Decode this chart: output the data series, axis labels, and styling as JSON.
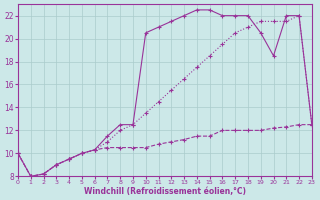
{
  "background_color": "#cce8e8",
  "grid_color": "#aacccc",
  "line_color": "#993399",
  "xlabel": "Windchill (Refroidissement éolien,°C)",
  "xlim": [
    0,
    23
  ],
  "ylim": [
    8,
    23
  ],
  "yticks": [
    8,
    10,
    12,
    14,
    16,
    18,
    20,
    22
  ],
  "xticks": [
    0,
    1,
    2,
    3,
    4,
    5,
    6,
    7,
    8,
    9,
    10,
    11,
    12,
    13,
    14,
    15,
    16,
    17,
    18,
    19,
    20,
    21,
    22,
    23
  ],
  "curve_dotted_x": [
    0,
    1,
    2,
    3,
    4,
    5,
    6,
    7,
    8,
    9,
    10,
    11,
    12,
    13,
    14,
    15,
    16,
    17,
    18,
    19,
    20,
    21,
    22,
    23
  ],
  "curve_dotted_y": [
    10,
    8,
    8.2,
    9.0,
    9.5,
    10.0,
    10.3,
    11.0,
    12.0,
    12.5,
    13.5,
    14.5,
    15.5,
    16.5,
    17.5,
    18.5,
    19.5,
    20.5,
    21.0,
    21.5,
    21.5,
    21.5,
    22.0,
    12.5
  ],
  "curve_solid_x": [
    0,
    1,
    2,
    3,
    4,
    5,
    6,
    7,
    8,
    9,
    10,
    11,
    12,
    13,
    14,
    15,
    16,
    17,
    18,
    19,
    20,
    21,
    22,
    23
  ],
  "curve_solid_y": [
    10,
    8,
    8.2,
    9.0,
    9.5,
    10.0,
    10.3,
    11.5,
    12.5,
    12.5,
    20.5,
    21.0,
    21.5,
    22.0,
    22.5,
    22.5,
    22.0,
    22.0,
    22.0,
    20.5,
    18.5,
    22.0,
    22.0,
    12.5
  ],
  "curve_dashed_x": [
    0,
    1,
    2,
    3,
    4,
    5,
    6,
    7,
    8,
    9,
    10,
    11,
    12,
    13,
    14,
    15,
    16,
    17,
    18,
    19,
    20,
    21,
    22,
    23
  ],
  "curve_dashed_y": [
    10,
    8,
    8.2,
    9.0,
    9.5,
    10.0,
    10.3,
    10.5,
    10.5,
    10.5,
    10.5,
    10.8,
    11.0,
    11.2,
    11.5,
    11.5,
    12.0,
    12.0,
    12.0,
    12.0,
    12.2,
    12.3,
    12.5,
    12.5
  ]
}
